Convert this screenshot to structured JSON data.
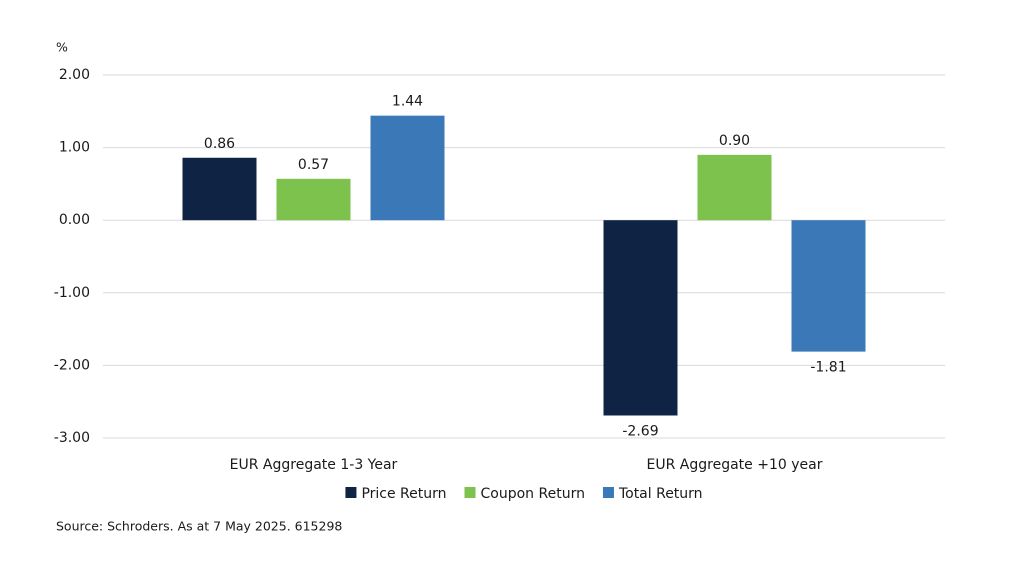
{
  "chart_data": {
    "type": "bar",
    "y_unit": "%",
    "categories": [
      "EUR Aggregate 1-3 Year",
      "EUR Aggregate +10 year"
    ],
    "series": [
      {
        "name": "Price Return",
        "color": "#0f2344",
        "values": [
          0.86,
          -2.69
        ],
        "value_labels": [
          "0.86",
          "-2.69"
        ]
      },
      {
        "name": "Coupon Return",
        "color": "#7cc24c",
        "values": [
          0.57,
          0.9
        ],
        "value_labels": [
          "0.57",
          "0.90"
        ]
      },
      {
        "name": "Total Return",
        "color": "#3a78b8",
        "values": [
          1.44,
          -1.81
        ],
        "value_labels": [
          "1.44",
          "-1.81"
        ]
      }
    ],
    "ylim": [
      -3,
      2
    ],
    "yticks": [
      {
        "value": 2,
        "label": "2.00"
      },
      {
        "value": 1,
        "label": "1.00"
      },
      {
        "value": 0,
        "label": "0.00"
      },
      {
        "value": -1,
        "label": "-1.00"
      },
      {
        "value": -2,
        "label": "-2.00"
      },
      {
        "value": -3,
        "label": "-3.00"
      }
    ],
    "grid": true,
    "legend": "bottom",
    "source": "Source: Schroders. As at 7 May 2025. 615298"
  }
}
